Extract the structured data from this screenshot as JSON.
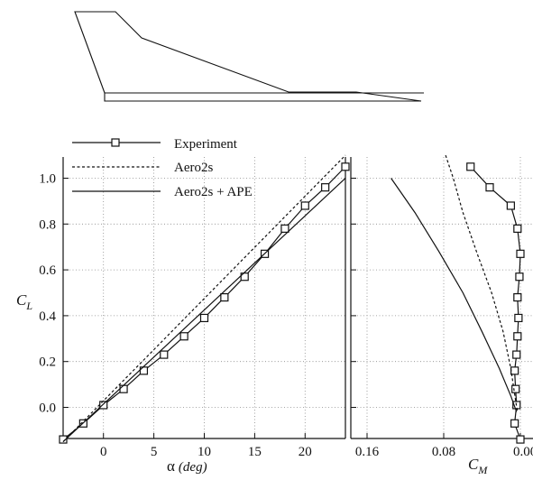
{
  "chart_data": [
    {
      "type": "line",
      "panel": "lift-vs-alpha",
      "xlabel": "α",
      "xlabel_unit": "(deg)",
      "ylabel": "C",
      "ylabel_sub": "L",
      "xlim": [
        -4,
        24
      ],
      "ylim": [
        -0.15,
        1.1
      ],
      "x_ticks": [
        0,
        5,
        10,
        15,
        20
      ],
      "y_ticks": [
        0.0,
        0.2,
        0.4,
        0.6,
        0.8,
        1.0
      ],
      "y_tick_labels": [
        "0.0",
        "0.2",
        "0.4",
        "0.6",
        "0.8",
        "1.0"
      ],
      "grid": true,
      "legend_position": "top-left",
      "series": [
        {
          "name": "Experiment",
          "style": "line-with-square-markers",
          "x": [
            -4,
            -2,
            0,
            2,
            4,
            6,
            8,
            10,
            12,
            14,
            16,
            18,
            20,
            22,
            24
          ],
          "y": [
            -0.14,
            -0.07,
            0.01,
            0.08,
            0.16,
            0.23,
            0.31,
            0.39,
            0.48,
            0.57,
            0.67,
            0.78,
            0.88,
            0.96,
            1.05
          ]
        },
        {
          "name": "Aero2s",
          "style": "dashed",
          "x": [
            -4,
            24
          ],
          "y": [
            -0.15,
            1.1
          ]
        },
        {
          "name": "Aero2s + APE",
          "style": "solid",
          "x": [
            -4,
            24
          ],
          "y": [
            -0.15,
            1.0
          ]
        }
      ]
    },
    {
      "type": "line",
      "panel": "lift-vs-moment",
      "xlabel": "C",
      "xlabel_sub": "M",
      "xlim": [
        0.2,
        0.0
      ],
      "ylim": [
        -0.15,
        1.1
      ],
      "x_ticks": [
        0.16,
        0.08,
        0.0
      ],
      "x_tick_labels": [
        "0.16",
        "0.08",
        "0.00"
      ],
      "grid": true,
      "series": [
        {
          "name": "Experiment",
          "style": "line-with-square-markers",
          "x": [
            0.052,
            0.032,
            0.01,
            0.003,
            0.0,
            0.001,
            0.003,
            0.002,
            0.003,
            0.004,
            0.006,
            0.005,
            0.004,
            0.006,
            0.0
          ],
          "y": [
            1.05,
            0.96,
            0.88,
            0.78,
            0.67,
            0.57,
            0.48,
            0.39,
            0.31,
            0.23,
            0.16,
            0.08,
            0.01,
            -0.07,
            -0.14
          ]
        },
        {
          "name": "Aero2s",
          "style": "dashed",
          "x": [
            0.078,
            0.07,
            0.06,
            0.045,
            0.03,
            0.018,
            0.01,
            0.005,
            0.003
          ],
          "y": [
            1.1,
            1.0,
            0.85,
            0.67,
            0.5,
            0.33,
            0.17,
            0.03,
            -0.02
          ]
        },
        {
          "name": "Aero2s + APE",
          "style": "solid",
          "x": [
            0.135,
            0.11,
            0.085,
            0.06,
            0.04,
            0.022,
            0.01,
            0.004
          ],
          "y": [
            1.0,
            0.85,
            0.68,
            0.5,
            0.33,
            0.17,
            0.05,
            -0.02
          ]
        }
      ]
    }
  ],
  "legend": {
    "items": [
      "Experiment",
      "Aero2s",
      "Aero2s + APE"
    ]
  },
  "colors": {
    "ink": "#111111",
    "grid": "#888888",
    "background": "#ffffff"
  },
  "planform": {
    "shape": "delta-wing-planform-outline"
  }
}
